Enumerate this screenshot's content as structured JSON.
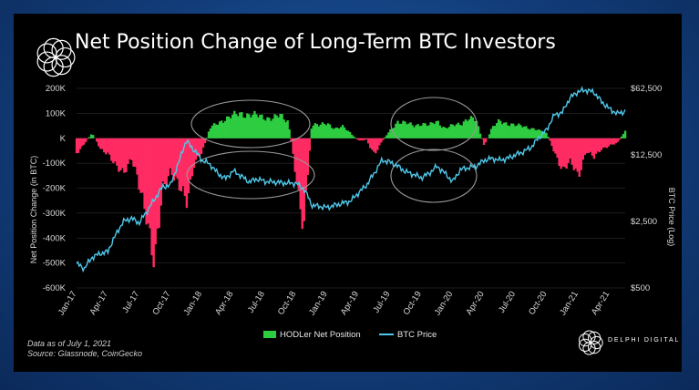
{
  "page": {
    "title": "Net Position Change of Long-Term BTC Investors",
    "note_line1": "Data as of July 1, 2021",
    "note_line2": "Source: Glassnode, CoinGecko",
    "brand": "DELPHI DIGITAL"
  },
  "colors": {
    "positive": "#2ecc40",
    "negative": "#ff2b63",
    "price": "#4fc8ea",
    "grid": "#3a3a3a",
    "ellipse": "#9a9a9a",
    "background": "#000000"
  },
  "chart_data": {
    "type": "area",
    "x_categories": [
      "Jan-17",
      "Apr-17",
      "Jul-17",
      "Oct-17",
      "Jan-18",
      "Apr-18",
      "Jul-18",
      "Oct-18",
      "Jan-19",
      "Apr-19",
      "Jul-19",
      "Oct-19",
      "Jan-20",
      "Apr-20",
      "Jul-20",
      "Oct-20",
      "Jan-21",
      "Apr-21"
    ],
    "left_ticks": [
      "200K",
      "100K",
      "K",
      "-100K",
      "-200K",
      "-300K",
      "-400K",
      "-500K",
      "-600K"
    ],
    "left_tick_values": [
      200,
      100,
      0,
      -100,
      -200,
      -300,
      -400,
      -500,
      -600
    ],
    "left_ylim": [
      -600,
      200
    ],
    "left_ylabel": "Net Position Change (in BTC)",
    "right_ticks": [
      "$62,500",
      "$12,500",
      "$2,500",
      "$500"
    ],
    "right_tick_values": [
      62500,
      12500,
      2500,
      500
    ],
    "right_ylim": [
      500,
      62500
    ],
    "right_scale": "log",
    "right_ylabel": "BTC Price (Log)",
    "series": [
      {
        "name": "HODLer Net Position",
        "unit": "thousand BTC",
        "t": [
          0,
          0.25,
          0.5,
          0.75,
          1,
          1.25,
          1.5,
          1.75,
          2,
          2.25,
          2.5,
          2.75,
          3,
          3.25,
          3.5,
          3.75,
          4,
          4.25,
          4.5,
          4.75,
          5,
          5.25,
          5.5,
          5.75,
          6,
          6.25,
          6.5,
          6.75,
          7,
          7.25,
          7.5,
          7.75,
          8,
          8.25,
          8.5,
          8.75,
          9,
          9.25,
          9.5,
          9.75,
          10,
          10.25,
          10.5,
          10.75,
          11,
          11.25,
          11.5,
          11.75,
          12,
          12.25,
          12.5,
          12.75,
          13,
          13.25,
          13.5,
          13.75,
          14,
          14.25,
          14.5,
          14.75,
          15,
          15.25,
          15.5,
          15.75,
          16,
          16.25,
          16.5,
          16.75,
          17,
          17.25,
          17.5
        ],
        "values": [
          -60,
          -20,
          20,
          -40,
          -60,
          -120,
          -130,
          -80,
          -200,
          -300,
          -520,
          -200,
          -120,
          -200,
          -250,
          -100,
          -60,
          40,
          60,
          80,
          90,
          100,
          95,
          90,
          85,
          80,
          90,
          70,
          -150,
          -350,
          60,
          50,
          60,
          40,
          45,
          20,
          -10,
          -5,
          -70,
          -10,
          30,
          70,
          60,
          50,
          60,
          50,
          70,
          40,
          50,
          60,
          80,
          70,
          -30,
          40,
          70,
          60,
          50,
          50,
          40,
          30,
          20,
          -60,
          -120,
          -100,
          -150,
          -50,
          -80,
          -40,
          -30,
          -20,
          30
        ]
      },
      {
        "name": "BTC Price",
        "unit": "USD",
        "t": [
          0,
          0.25,
          0.5,
          0.75,
          1,
          1.25,
          1.5,
          1.75,
          2,
          2.25,
          2.5,
          2.75,
          3,
          3.25,
          3.5,
          3.75,
          4,
          4.25,
          4.5,
          4.75,
          5,
          5.25,
          5.5,
          5.75,
          6,
          6.25,
          6.5,
          6.75,
          7,
          7.25,
          7.5,
          7.75,
          8,
          8.25,
          8.5,
          8.75,
          9,
          9.25,
          9.5,
          9.75,
          10,
          10.25,
          10.5,
          10.75,
          11,
          11.25,
          11.5,
          11.75,
          12,
          12.25,
          12.5,
          12.75,
          13,
          13.25,
          13.5,
          13.75,
          14,
          14.25,
          14.5,
          14.75,
          15,
          15.25,
          15.5,
          15.75,
          16,
          16.25,
          16.5,
          16.75,
          17,
          17.25,
          17.5
        ],
        "values": [
          900,
          800,
          1050,
          1150,
          1200,
          1800,
          2500,
          2700,
          2400,
          3200,
          4300,
          5800,
          6000,
          10000,
          17500,
          14000,
          11000,
          10000,
          8000,
          7000,
          8500,
          7500,
          6500,
          7000,
          6600,
          6500,
          6400,
          6300,
          6300,
          5500,
          3700,
          3600,
          3500,
          3700,
          3900,
          4100,
          5000,
          6000,
          8000,
          11000,
          10500,
          9500,
          8300,
          7800,
          7200,
          8000,
          9500,
          8000,
          6500,
          8800,
          9200,
          9500,
          11000,
          11500,
          11000,
          11500,
          12500,
          13500,
          15000,
          19000,
          23000,
          33000,
          35000,
          50000,
          58000,
          60000,
          57000,
          45000,
          38000,
          34000,
          36000
        ]
      }
    ],
    "legend": [
      "HODLer Net Position",
      "BTC Price"
    ],
    "legend_position": "bottom-center",
    "annotations": "four grey ellipses highlighting periods of accumulation during price consolidation"
  }
}
